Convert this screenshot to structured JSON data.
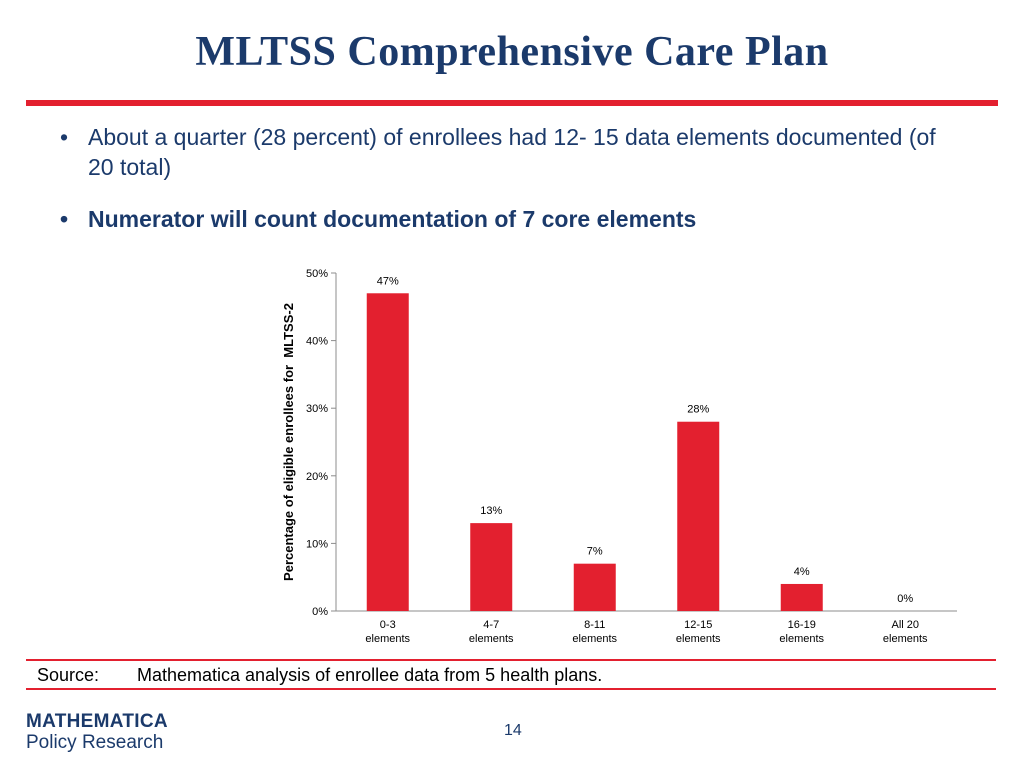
{
  "slide": {
    "title": "MLTSS Comprehensive Care Plan",
    "bullet_char": "•",
    "bullets": [
      "About a quarter (28 percent) of enrollees had 12- 15 data elements documented (of 20 total)",
      "Numerator will count documentation of 7 core elements"
    ],
    "source_label": "Source:",
    "source_text": "Mathematica analysis of enrollee data from 5 health plans.",
    "logo_line1": "MATHEMATICA",
    "logo_line2": "Policy Research",
    "page_number": "14",
    "accent_color": "#e3202f",
    "title_color": "#1b3a6b"
  },
  "chart_data": {
    "type": "bar",
    "categories": [
      [
        "0-3",
        "elements"
      ],
      [
        "4-7",
        "elements"
      ],
      [
        "8-11",
        "elements"
      ],
      [
        "12-15",
        "elements"
      ],
      [
        "16-19",
        "elements"
      ],
      [
        "All 20",
        "elements"
      ]
    ],
    "values": [
      47,
      13,
      7,
      28,
      4,
      0
    ],
    "data_labels": [
      "47%",
      "13%",
      "7%",
      "28%",
      "4%",
      "0%"
    ],
    "ylabel": "Percentage of eligible enrollees for  MLTSS-2",
    "ylim": [
      0,
      50
    ],
    "yticks": [
      0,
      10,
      20,
      30,
      40,
      50
    ],
    "ytick_labels": [
      "0%",
      "10%",
      "20%",
      "30%",
      "40%",
      "50%"
    ],
    "bar_color": "#e3202f",
    "grid": false,
    "legend": "none"
  }
}
